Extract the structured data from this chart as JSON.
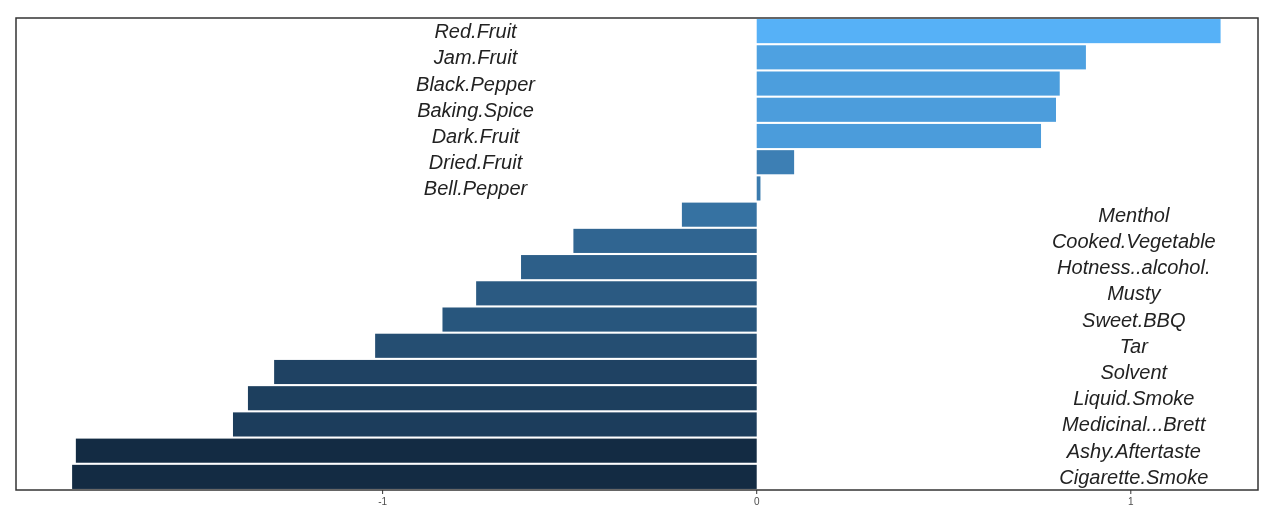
{
  "chart_data": {
    "type": "bar",
    "orientation": "horizontal",
    "tick_labels": "x",
    "grid": false,
    "categories": [
      "Red.Fruit",
      "Jam.Fruit",
      "Black.Pepper",
      "Baking.Spice",
      "Dark.Fruit",
      "Dried.Fruit",
      "Bell.Pepper",
      "Menthol",
      "Cooked.Vegetable",
      "Hotness..alcohol.",
      "Musty",
      "Sweet.BBQ",
      "Tar",
      "Solvent",
      "Liquid.Smoke",
      "Medicinal...Brett",
      "Ashy.Aftertaste",
      "Cigarette.Smoke"
    ],
    "values": [
      1.24,
      0.88,
      0.81,
      0.8,
      0.76,
      0.1,
      0.01,
      -0.2,
      -0.49,
      -0.63,
      -0.75,
      -0.84,
      -1.02,
      -1.29,
      -1.36,
      -1.4,
      -1.82,
      -1.83
    ],
    "colors": [
      "#56b1f7",
      "#4ea1e1",
      "#4c9edd",
      "#4c9ddc",
      "#4b9cdb",
      "#3d7fb4",
      "#3b7bae",
      "#3672a2",
      "#306591",
      "#2d5f89",
      "#2b5a82",
      "#28567d",
      "#254e72",
      "#1f4263",
      "#1d3f5e",
      "#1c3d5c",
      "#132b43",
      "#132b43"
    ],
    "xlim": [
      -1.98,
      1.34
    ],
    "xticks": [
      -1,
      0,
      1
    ]
  }
}
